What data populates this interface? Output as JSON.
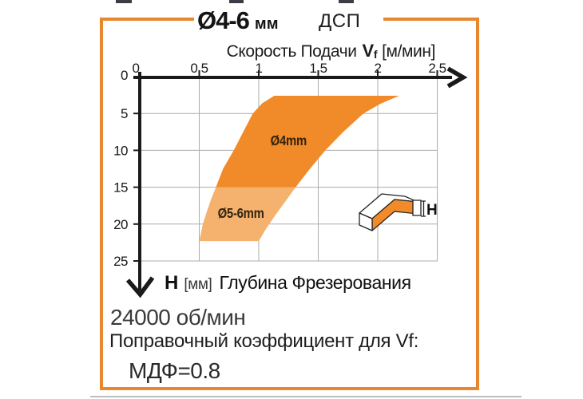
{
  "ui": {
    "title": {
      "diameter": "Ø4-6",
      "diameter_unit": "мм",
      "material": "ДСП"
    },
    "x_axis": {
      "label": "Скорость Подачи",
      "symbol": "V",
      "symbol_sub": "f",
      "units": "[м/мин]"
    },
    "y_axis": {
      "symbol": "H",
      "units": "[мм]",
      "label": "Глубина Фрезерования"
    },
    "notes": {
      "rpm": "24000 об/мин",
      "correction_title": "Поправочный коэффициент для Vf:",
      "correction_value": "МДФ=0.8"
    },
    "icon_label": "H"
  },
  "chart_data": {
    "type": "area",
    "title": "Ø4-6 мм ДСП",
    "xlabel": "Скорость Подачи Vf [м/мин]",
    "ylabel": "H [мм] Глубина Фрезерования",
    "xlim": [
      0,
      2.5
    ],
    "ylim": [
      0,
      25
    ],
    "y_axis_inverted": true,
    "grid": true,
    "x_ticks": [
      0,
      0.5,
      1,
      1.5,
      2,
      2.5
    ],
    "y_ticks": [
      0,
      5,
      10,
      15,
      20,
      25
    ],
    "series": [
      {
        "name": "Ø4mm",
        "color": "#F18A28",
        "label_pos": [
          1.25,
          9.3
        ],
        "region": [
          [
            0.64,
            15
          ],
          [
            0.7,
            12.5
          ],
          [
            0.79,
            10
          ],
          [
            0.87,
            7.5
          ],
          [
            0.95,
            5
          ],
          [
            1.03,
            3.6
          ],
          [
            1.13,
            2.6
          ],
          [
            2.18,
            2.6
          ],
          [
            2.02,
            3.7
          ],
          [
            1.88,
            5
          ],
          [
            1.71,
            7.5
          ],
          [
            1.56,
            10
          ],
          [
            1.43,
            12.5
          ],
          [
            1.31,
            15
          ]
        ]
      },
      {
        "name": "Ø5-6mm",
        "color": "#F5B26E",
        "label_pos": [
          0.85,
          19.15
        ],
        "region": [
          [
            0.5,
            22.3
          ],
          [
            0.53,
            20
          ],
          [
            0.56,
            18.5
          ],
          [
            0.6,
            16.6
          ],
          [
            0.64,
            15
          ],
          [
            1.31,
            15
          ],
          [
            1.22,
            17
          ],
          [
            1.13,
            19
          ],
          [
            1.06,
            20.7
          ],
          [
            1.0,
            22.3
          ]
        ]
      }
    ],
    "annotations": {
      "spindle_speed": "24000 об/мин",
      "vf_correction_note": "Поправочный коэффициент для Vf:",
      "vf_correction": {
        "МДФ": 0.8
      },
      "material": "ДСП",
      "tool_diameter_range": "Ø4-6 мм"
    }
  },
  "colors": {
    "accent_orange": "#E8872E",
    "band_dark": "#F18A28",
    "band_light": "#F5B26E",
    "axis": "#1a1a1a",
    "grid": "#ACACAC"
  }
}
